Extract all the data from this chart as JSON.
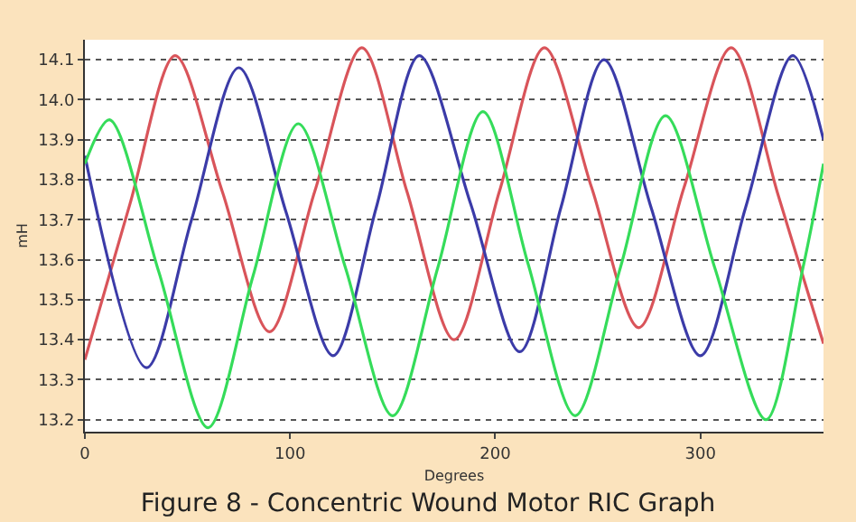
{
  "chart_data": {
    "type": "line",
    "title": "Figure 8 - Concentric Wound Motor RIC Graph",
    "xlabel": "Degrees",
    "ylabel": "mH",
    "xlim": [
      0,
      360
    ],
    "xticks": [
      0,
      100,
      200,
      300
    ],
    "ylim": [
      13.17,
      14.15
    ],
    "yticks": [
      13.2,
      13.3,
      13.4,
      13.5,
      13.6,
      13.7,
      13.8,
      13.9,
      {
        "value": 14.0,
        "label": "14.0"
      },
      14.1
    ],
    "grid": "y",
    "line_style": "solid",
    "marker": "none",
    "series": [
      {
        "color": "#d9545a",
        "x": [
          0,
          22,
          44,
          67,
          90,
          112,
          135,
          157,
          180,
          202,
          224,
          247,
          270,
          292,
          315,
          338,
          360
        ],
        "values": [
          13.35,
          13.74,
          14.11,
          13.77,
          13.42,
          13.77,
          14.13,
          13.77,
          13.4,
          13.77,
          14.13,
          13.78,
          13.43,
          13.78,
          14.13,
          13.76,
          13.39
        ]
      },
      {
        "color": "#3b3ba8",
        "x": [
          0,
          30,
          52,
          75,
          98,
          121,
          142,
          163,
          188,
          212,
          232,
          253,
          276,
          300,
          322,
          345,
          360
        ],
        "values": [
          13.86,
          13.33,
          13.7,
          14.08,
          13.72,
          13.36,
          13.73,
          14.11,
          13.74,
          13.37,
          13.73,
          14.1,
          13.73,
          13.36,
          13.73,
          14.11,
          13.9
        ]
      },
      {
        "color": "#35dc5a",
        "x": [
          0,
          12,
          36,
          60,
          82,
          104,
          127,
          150,
          172,
          194,
          216,
          239,
          261,
          283,
          307,
          332,
          350,
          360
        ],
        "values": [
          13.84,
          13.95,
          13.57,
          13.18,
          13.56,
          13.94,
          13.58,
          13.21,
          13.58,
          13.97,
          13.59,
          13.21,
          13.58,
          13.96,
          13.58,
          13.2,
          13.58,
          13.84
        ]
      }
    ]
  }
}
